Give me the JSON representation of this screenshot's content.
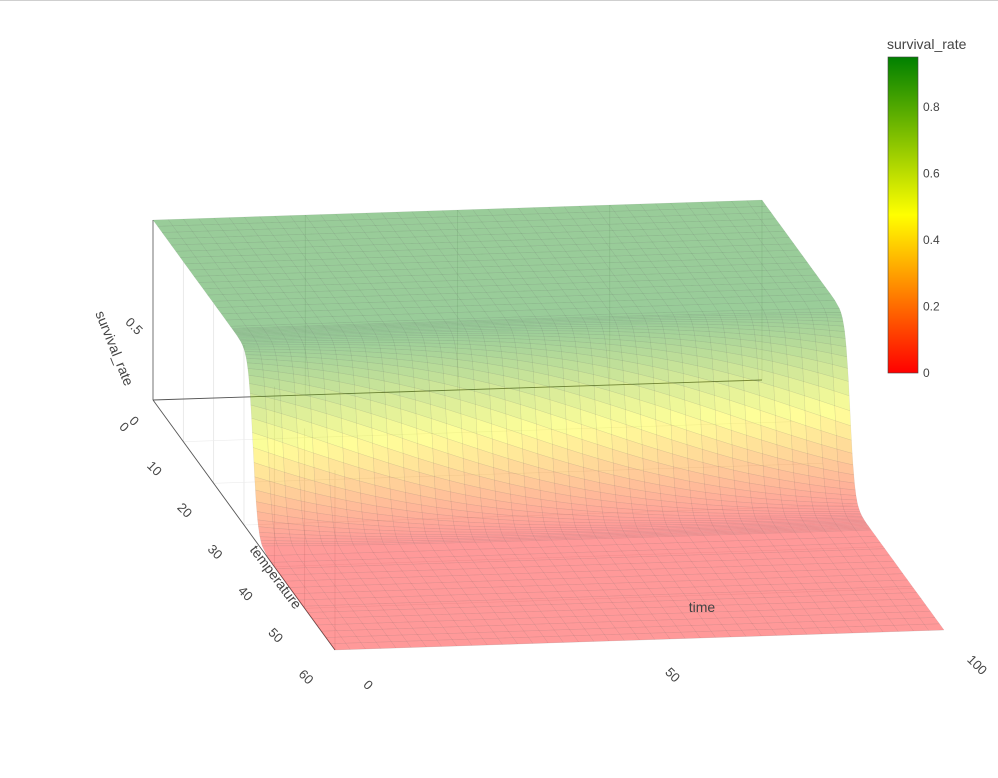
{
  "chart_data": {
    "type": "surface",
    "x_axis": {
      "title": "time",
      "range": [
        0,
        100
      ],
      "ticks": [
        0,
        50,
        100
      ]
    },
    "y_axis": {
      "title": "temperature",
      "range": [
        0,
        60
      ],
      "ticks": [
        0,
        10,
        20,
        30,
        40,
        50,
        60
      ]
    },
    "z_axis": {
      "title": "survival_rate",
      "range": [
        0,
        0.95
      ],
      "ticks": [
        0,
        0.5
      ]
    },
    "colorbar": {
      "title": "survival_rate",
      "range": [
        0,
        0.95
      ],
      "ticks": [
        0,
        0.2,
        0.4,
        0.6,
        0.8
      ],
      "colorscale": [
        [
          0,
          "#ff0000"
        ],
        [
          0.5,
          "#ffff00"
        ],
        [
          1,
          "#008000"
        ]
      ]
    },
    "surface_opacity": 0.4,
    "model": {
      "description": "survival ~0.95 for temperature below a threshold, ~0 above; threshold shifts from about 33 at time 0 to about 29 at time 100",
      "max_survival": 0.95,
      "threshold_at_time_0": 33,
      "threshold_at_time_100": 29,
      "transition_width": 0.8
    },
    "legend": "right"
  }
}
